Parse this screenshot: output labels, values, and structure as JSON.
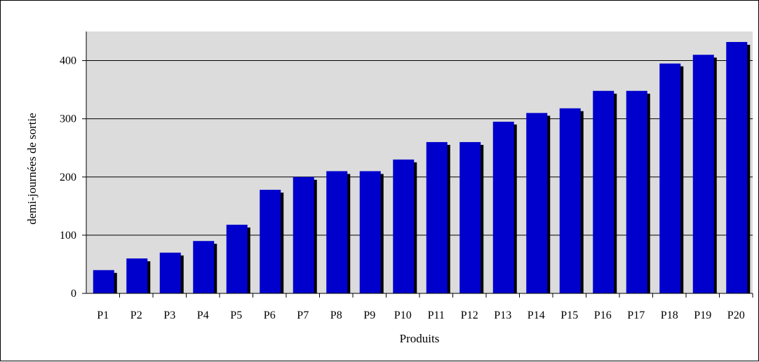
{
  "chart_data": {
    "type": "bar",
    "title": "",
    "xlabel": "Produits",
    "ylabel": "demi-journées de sortie",
    "categories": [
      "P1",
      "P2",
      "P3",
      "P4",
      "P5",
      "P6",
      "P7",
      "P8",
      "P9",
      "P10",
      "P11",
      "P12",
      "P13",
      "P14",
      "P15",
      "P16",
      "P17",
      "P18",
      "P19",
      "P20"
    ],
    "values": [
      40,
      60,
      70,
      90,
      118,
      178,
      200,
      210,
      210,
      230,
      260,
      260,
      295,
      310,
      318,
      348,
      348,
      395,
      410,
      432
    ],
    "ylim": [
      0,
      450
    ],
    "yticks": [
      0,
      100,
      200,
      300,
      400
    ],
    "grid": true,
    "legend": "none",
    "colors": {
      "bar": "#0000CC",
      "bar_shadow": "#000000",
      "plot_background": "#DCDCDC",
      "gridline": "#000000"
    }
  }
}
